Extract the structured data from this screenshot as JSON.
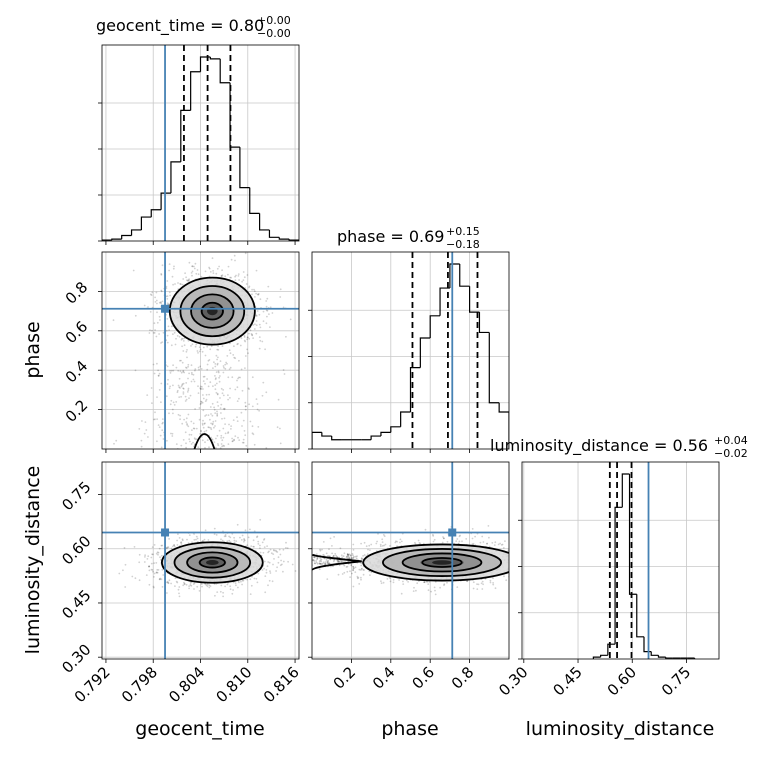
{
  "chart_data": {
    "type": "corner",
    "parameters": [
      "geocent_time",
      "phase",
      "luminosity_distance"
    ],
    "truths": {
      "geocent_time": 0.7995,
      "phase": 0.712,
      "luminosity_distance": 0.645
    },
    "titles": [
      {
        "param": "geocent_time",
        "text": "geocent_time = 0.80",
        "plus": "+0.00",
        "minus": "−0.00"
      },
      {
        "param": "phase",
        "text": "phase = 0.69",
        "plus": "+0.15",
        "minus": "−0.18"
      },
      {
        "param": "luminosity_distance",
        "text": "luminosity_distance = 0.56",
        "plus": "+0.04",
        "minus": "−0.02"
      }
    ],
    "ranges": {
      "geocent_time": [
        0.7915,
        0.8165
      ],
      "phase": [
        0.0,
        1.0
      ],
      "luminosity_distance": [
        0.295,
        0.84
      ]
    },
    "ticks": {
      "geocent_time": [
        "0.792",
        "0.798",
        "0.804",
        "0.810",
        "0.816"
      ],
      "phase": [
        "0.2",
        "0.4",
        "0.6",
        "0.8"
      ],
      "luminosity_distance": [
        "0.30",
        "0.45",
        "0.60",
        "0.75"
      ]
    },
    "quantiles": {
      "geocent_time": [
        0.8019,
        0.8049,
        0.8078
      ],
      "phase": [
        0.51,
        0.69,
        0.84
      ],
      "luminosity_distance": [
        0.538,
        0.558,
        0.598
      ]
    },
    "histograms": {
      "geocent_time": {
        "edges": [
          0.7915,
          0.79275,
          0.794,
          0.79525,
          0.7965,
          0.79775,
          0.799,
          0.80025,
          0.8015,
          0.80275,
          0.804,
          0.80525,
          0.8065,
          0.80775,
          0.809,
          0.81025,
          0.8115,
          0.81275,
          0.814,
          0.81525,
          0.8165
        ],
        "counts": [
          0.5,
          1,
          3,
          6,
          13,
          17,
          26,
          43,
          71,
          92,
          100,
          99,
          86,
          51,
          29,
          15,
          6,
          2,
          1,
          0.5
        ]
      },
      "phase": {
        "edges": [
          0.0,
          0.05,
          0.1,
          0.15,
          0.2,
          0.25,
          0.3,
          0.35,
          0.4,
          0.45,
          0.5,
          0.55,
          0.6,
          0.65,
          0.7,
          0.75,
          0.8,
          0.85,
          0.9,
          0.95,
          1.0
        ],
        "counts": [
          9,
          7,
          5,
          5,
          5,
          5,
          7,
          9,
          12,
          20,
          44,
          60,
          72,
          87,
          100,
          88,
          74,
          63,
          25,
          20
        ]
      },
      "luminosity_distance": {
        "edges": [
          0.4925,
          0.5125,
          0.5325,
          0.5525,
          0.5725,
          0.5925,
          0.6125,
          0.6325,
          0.6525,
          0.6725,
          0.6925,
          0.7125,
          0.7325,
          0.7525,
          0.7725
        ],
        "counts": [
          1,
          2,
          8,
          82,
          100,
          35,
          12,
          4,
          2,
          1,
          0.5,
          0.5,
          0.5,
          0.5
        ]
      }
    },
    "density_2d": [
      {
        "x": "geocent_time",
        "y": "phase",
        "center": [
          0.8055,
          0.7
        ],
        "sigma": [
          0.0027,
          0.085
        ],
        "tail": {
          "x": 0.8045,
          "ylim": [
            0.0,
            0.45
          ]
        }
      },
      {
        "x": "geocent_time",
        "y": "luminosity_distance",
        "center": [
          0.8055,
          0.562
        ],
        "sigma": [
          0.0032,
          0.028
        ],
        "tilt": 0.004
      },
      {
        "x": "phase",
        "y": "luminosity_distance",
        "center": [
          0.66,
          0.562
        ],
        "sigma": [
          0.2,
          0.025
        ],
        "wing": {
          "x": 0.1,
          "y": 0.568
        }
      }
    ],
    "contour_levels": [
      "0.5 sigma",
      "1 sigma",
      "1.5 sigma",
      "2 sigma"
    ],
    "grid": true
  }
}
